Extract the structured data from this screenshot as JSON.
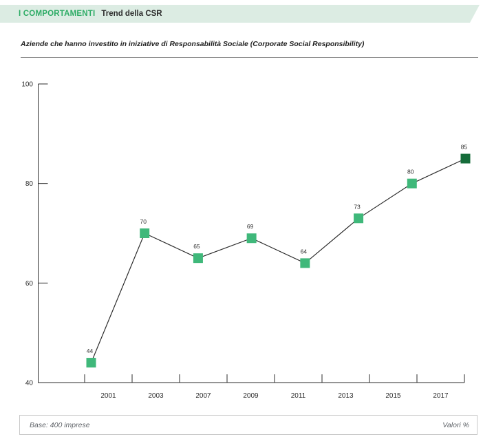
{
  "header": {
    "section": "I COMPORTAMENTI",
    "title": "Trend della CSR"
  },
  "subtitle": "Aziende che hanno investito in iniziative di Responsabilità Sociale (Corporate Social Responsibility)",
  "footer": {
    "left": "Base: 400 imprese",
    "right": "Valori %"
  },
  "colors": {
    "accent_green": "#2eac66",
    "header_bg": "#dcece3",
    "marker_green": "#3fb87a",
    "marker_dark_green": "#156c3a",
    "line_color": "#2b2b2b",
    "muted_text": "#5f6368"
  },
  "chart_data": {
    "type": "line",
    "title": "Aziende che hanno investito in iniziative di Responsabilità Sociale (Corporate Social Responsibility)",
    "categories": [
      "2001",
      "2003",
      "2007",
      "2009",
      "2011",
      "2013",
      "2015",
      "2017"
    ],
    "values": [
      44,
      70,
      65,
      69,
      64,
      73,
      80,
      85
    ],
    "xlabel": "",
    "ylabel": "",
    "ylim": [
      40,
      100
    ],
    "yticks": [
      40,
      60,
      80,
      100
    ],
    "unit": "Valori %",
    "base_note": "Base: 400 imprese",
    "grid": false,
    "legend": "none",
    "marker": "square",
    "marker_color": "#3fb87a",
    "last_marker_color": "#156c3a",
    "line_color": "#2b2b2b",
    "value_labels": true
  }
}
